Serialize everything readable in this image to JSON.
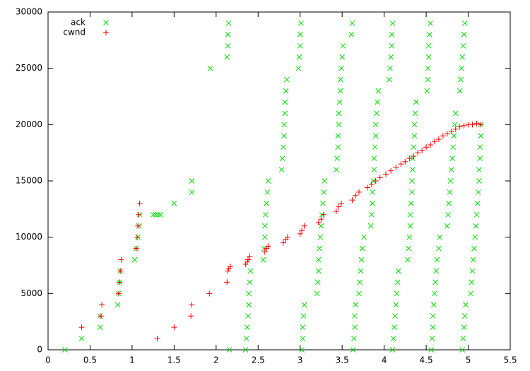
{
  "chart_data": {
    "type": "scatter",
    "xlim": [
      0,
      5.5
    ],
    "xticks": [
      0,
      0.5,
      1,
      1.5,
      2,
      2.5,
      3,
      3.5,
      4,
      4.5,
      5,
      5.5
    ],
    "ylim": [
      0,
      30000
    ],
    "yticks": [
      0,
      5000,
      10000,
      15000,
      20000,
      25000,
      30000
    ],
    "grid": false,
    "legend": "top-left",
    "series": [
      {
        "name": "ack",
        "color": "#00dd00",
        "marker": "x",
        "x": [
          0.2,
          0.4,
          0.62,
          0.62,
          0.83,
          0.84,
          0.85,
          0.86,
          1.03,
          1.05,
          1.07,
          1.08,
          1.09,
          1.25,
          1.28,
          1.31,
          1.34,
          1.5,
          1.71,
          1.71,
          1.93,
          2.13,
          2.14,
          2.14,
          2.15,
          2.16,
          2.35,
          2.36,
          2.37,
          2.38,
          2.39,
          2.39,
          2.4,
          2.41,
          2.56,
          2.57,
          2.58,
          2.58,
          2.59,
          2.6,
          2.61,
          2.62,
          2.78,
          2.79,
          2.8,
          2.81,
          2.81,
          2.82,
          2.82,
          2.83,
          2.84,
          2.98,
          2.99,
          3.0,
          3.0,
          3.01,
          3.02,
          3.03,
          3.03,
          3.04,
          3.05,
          3.2,
          3.21,
          3.22,
          3.22,
          3.23,
          3.24,
          3.25,
          3.26,
          3.27,
          3.28,
          3.29,
          3.43,
          3.44,
          3.45,
          3.45,
          3.46,
          3.46,
          3.47,
          3.48,
          3.48,
          3.49,
          3.5,
          3.51,
          3.61,
          3.62,
          3.63,
          3.64,
          3.65,
          3.65,
          3.66,
          3.7,
          3.71,
          3.72,
          3.73,
          3.74,
          3.76,
          3.84,
          3.85,
          3.86,
          3.86,
          3.87,
          3.88,
          3.88,
          3.89,
          3.9,
          3.9,
          3.91,
          3.92,
          3.93,
          4.06,
          4.07,
          4.08,
          4.09,
          4.09,
          4.1,
          4.1,
          4.11,
          4.12,
          4.13,
          4.14,
          4.15,
          4.16,
          4.17,
          4.28,
          4.29,
          4.3,
          4.31,
          4.31,
          4.32,
          4.33,
          4.33,
          4.34,
          4.34,
          4.35,
          4.36,
          4.36,
          4.37,
          4.38,
          4.51,
          4.52,
          4.52,
          4.53,
          4.53,
          4.54,
          4.55,
          4.56,
          4.57,
          4.58,
          4.58,
          4.59,
          4.6,
          4.61,
          4.62,
          4.63,
          4.65,
          4.66,
          4.75,
          4.76,
          4.77,
          4.78,
          4.79,
          4.8,
          4.81,
          4.82,
          4.83,
          4.84,
          4.85,
          4.9,
          4.91,
          4.92,
          4.93,
          4.94,
          4.95,
          4.96,
          4.93,
          4.94,
          4.95,
          4.96,
          4.97,
          5.03,
          5.04,
          5.05,
          5.06,
          5.07,
          5.08,
          5.09,
          5.1,
          5.11,
          5.12,
          5.13,
          5.13,
          5.14,
          5.14,
          5.15,
          5.15
        ],
        "values": [
          0,
          1000,
          2000,
          3000,
          4000,
          5000,
          6000,
          7000,
          8000,
          9000,
          10000,
          11000,
          12000,
          12000,
          12000,
          12000,
          12000,
          13000,
          14000,
          15000,
          25000,
          26000,
          27000,
          28000,
          29000,
          0,
          0,
          1000,
          2000,
          3000,
          4000,
          5000,
          6000,
          7000,
          8000,
          9000,
          10000,
          11000,
          12000,
          13000,
          14000,
          15000,
          16000,
          17000,
          18000,
          19000,
          20000,
          21000,
          22000,
          23000,
          24000,
          25000,
          26000,
          27000,
          28000,
          29000,
          0,
          1000,
          2000,
          3000,
          4000,
          5000,
          6000,
          7000,
          8000,
          9000,
          10000,
          11000,
          12000,
          13000,
          14000,
          15000,
          16000,
          17000,
          18000,
          19000,
          20000,
          21000,
          22000,
          23000,
          24000,
          25000,
          26000,
          27000,
          28000,
          29000,
          0,
          1000,
          2000,
          3000,
          4000,
          5000,
          6000,
          7000,
          8000,
          9000,
          10000,
          11000,
          12000,
          13000,
          14000,
          15000,
          16000,
          17000,
          18000,
          19000,
          20000,
          21000,
          22000,
          23000,
          24000,
          25000,
          26000,
          27000,
          28000,
          29000,
          0,
          1000,
          2000,
          3000,
          4000,
          5000,
          6000,
          7000,
          8000,
          9000,
          10000,
          11000,
          12000,
          13000,
          14000,
          15000,
          16000,
          17000,
          18000,
          19000,
          20000,
          21000,
          22000,
          23000,
          24000,
          25000,
          26000,
          27000,
          28000,
          29000,
          0,
          1000,
          2000,
          3000,
          4000,
          5000,
          6000,
          7000,
          8000,
          9000,
          10000,
          11000,
          12000,
          13000,
          14000,
          15000,
          16000,
          17000,
          18000,
          19000,
          20000,
          21000,
          23000,
          24000,
          25000,
          26000,
          27000,
          28000,
          29000,
          0,
          1000,
          2000,
          3000,
          4000,
          5000,
          6000,
          7000,
          8000,
          9000,
          10000,
          11000,
          12000,
          13000,
          14000,
          15000,
          16000,
          17000,
          18000,
          19000,
          20000
        ]
      },
      {
        "name": "cwnd",
        "color": "#ff0000",
        "marker": "+",
        "x": [
          0.4,
          0.63,
          0.64,
          0.84,
          0.85,
          0.86,
          0.87,
          1.05,
          1.06,
          1.07,
          1.08,
          1.09,
          1.3,
          1.5,
          1.7,
          1.71,
          1.92,
          2.13,
          2.14,
          2.15,
          2.17,
          2.35,
          2.37,
          2.38,
          2.4,
          2.58,
          2.6,
          2.62,
          2.8,
          2.83,
          2.85,
          3.0,
          3.02,
          3.05,
          3.22,
          3.25,
          3.28,
          3.43,
          3.46,
          3.49,
          3.62,
          3.66,
          3.7,
          3.8,
          3.85,
          3.9,
          3.95,
          4.02,
          4.08,
          4.14,
          4.2,
          4.25,
          4.3,
          4.35,
          4.4,
          4.45,
          4.5,
          4.55,
          4.6,
          4.65,
          4.7,
          4.75,
          4.8,
          4.85,
          4.9,
          4.95,
          5.0,
          5.05,
          5.1,
          5.15
        ],
        "values": [
          2000,
          3000,
          4000,
          5000,
          6000,
          7000,
          8000,
          9000,
          10000,
          11000,
          12000,
          13000,
          1000,
          2000,
          3000,
          4000,
          5000,
          6000,
          7000,
          7200,
          7400,
          7600,
          7800,
          8000,
          8300,
          8700,
          9000,
          9200,
          9500,
          9800,
          10000,
          10300,
          10600,
          11000,
          11300,
          11600,
          12000,
          12300,
          12700,
          13000,
          13300,
          13700,
          14000,
          14400,
          14700,
          15000,
          15300,
          15600,
          15900,
          16200,
          16500,
          16700,
          17000,
          17200,
          17500,
          17700,
          18000,
          18200,
          18500,
          18700,
          19000,
          19200,
          19400,
          19600,
          19800,
          19900,
          20000,
          20000,
          20100,
          20000
        ]
      }
    ]
  }
}
